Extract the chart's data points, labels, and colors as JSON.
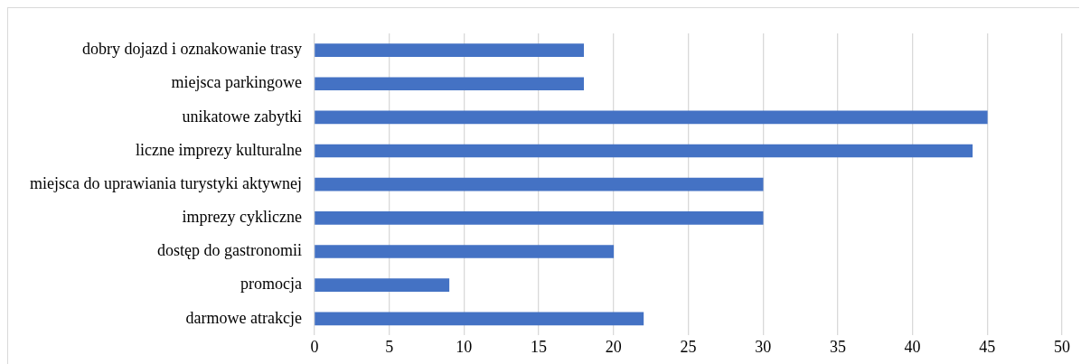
{
  "chart_data": {
    "type": "bar",
    "orientation": "horizontal",
    "categories": [
      "dobry dojazd i oznakowanie trasy",
      "miejsca parkingowe",
      "unikatowe zabytki",
      "liczne imprezy kulturalne",
      "miejsca do uprawiania turystyki aktywnej",
      "imprezy cykliczne",
      "dostęp do gastronomii",
      "promocja",
      "darmowe atrakcje"
    ],
    "values": [
      18,
      18,
      45,
      44,
      30,
      30,
      20,
      9,
      22
    ],
    "color": "#4472c4",
    "xlim": [
      0,
      50
    ],
    "xticks": [
      0,
      5,
      10,
      15,
      20,
      25,
      30,
      35,
      40,
      45,
      50
    ],
    "grid": "x"
  }
}
